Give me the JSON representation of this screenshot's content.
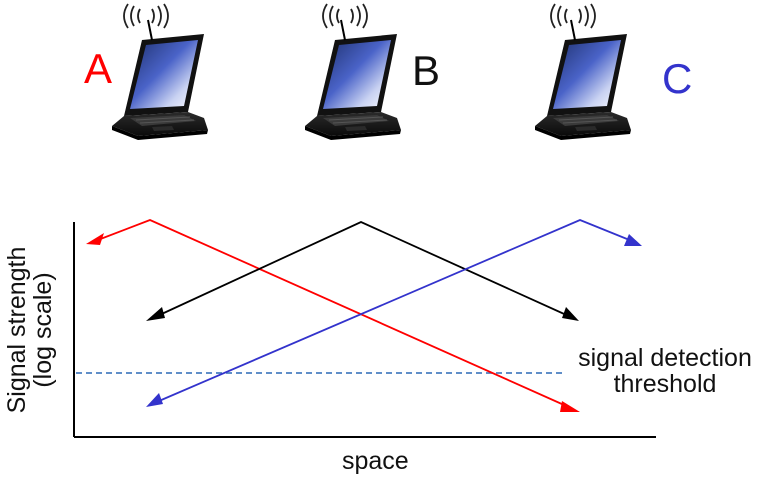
{
  "nodes": [
    {
      "id": "A",
      "label": "A",
      "color": "#ff0000"
    },
    {
      "id": "B",
      "label": "B",
      "color": "#111111"
    },
    {
      "id": "C",
      "label": "C",
      "color": "#3333cc"
    }
  ],
  "axes": {
    "y_label_line1": "Signal strength",
    "y_label_line2": "(log scale)",
    "x_label": "space"
  },
  "threshold": {
    "label_line1": "signal detection",
    "label_line2": "threshold",
    "color": "#4a7fc0",
    "style": "dashed"
  },
  "icons": {
    "laptop": "laptop-icon",
    "wireless": "wireless-waves-icon"
  },
  "signals": [
    {
      "source": "A",
      "color": "#ff0000"
    },
    {
      "source": "B",
      "color": "#000000"
    },
    {
      "source": "C",
      "color": "#3333cc"
    }
  ]
}
